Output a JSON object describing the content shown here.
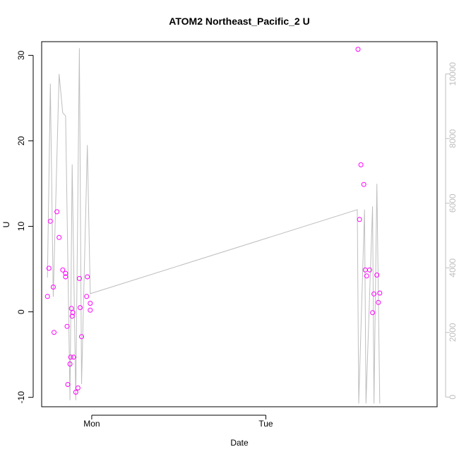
{
  "chart_data": {
    "type": "scatter",
    "title": "ATOM2 Northeast_Pacific_2 U",
    "xlabel": "Date",
    "ylabel": "U",
    "x_tick_labels": [
      "Mon",
      "Tue"
    ],
    "x_ticks_hours": [
      0,
      24
    ],
    "xlim_hours": [
      -6.9,
      47.6
    ],
    "y_ticks": [
      -10,
      0,
      10,
      20,
      30
    ],
    "ylim": [
      -11.1,
      31.6
    ],
    "y2_ticks": [
      0,
      2000,
      4000,
      6000,
      8000,
      10000
    ],
    "y2lim": [
      -300,
      11000
    ],
    "point_color": "#ff00ff",
    "line_color": "#bebebe",
    "y2_tick_color": "#bebebe",
    "series": [
      {
        "kind": "points",
        "axis": "left",
        "x_hours": [
          -6.1,
          -5.9,
          -5.7,
          -5.3,
          -5.2,
          -4.8,
          -4.5,
          -4.0,
          -3.6,
          -3.6,
          -3.4,
          -3.3,
          -3.0,
          -2.9,
          -2.8,
          -2.7,
          -2.6,
          -2.5,
          -2.2,
          -1.9,
          -1.7,
          -1.6,
          -1.4,
          -0.7,
          -0.6,
          -0.2,
          -0.2,
          36.7,
          36.9,
          37.1,
          37.5,
          37.7,
          37.9,
          38.3,
          38.7,
          38.9,
          39.3,
          39.5,
          39.7
        ],
        "values": [
          1.8,
          5.1,
          10.6,
          2.9,
          -2.4,
          11.7,
          8.7,
          4.9,
          4.5,
          4.1,
          -1.7,
          -8.5,
          -6.1,
          -5.3,
          0.4,
          -0.5,
          -0.1,
          -5.3,
          -9.4,
          -8.9,
          3.9,
          0.5,
          -2.9,
          1.8,
          4.1,
          1.0,
          0.2,
          30.7,
          10.8,
          17.2,
          14.9,
          4.9,
          4.2,
          4.9,
          -0.1,
          2.1,
          4.3,
          1.1,
          2.2
        ]
      },
      {
        "kind": "line",
        "axis": "right",
        "x_hours": [
          -6.1,
          -5.7,
          -5.3,
          -4.5,
          -4.0,
          -3.6,
          -3.0,
          -2.7,
          -2.2,
          -1.7,
          -1.4,
          -0.6,
          -0.2,
          36.6,
          36.8,
          37.6,
          37.8,
          38.7,
          38.9,
          39.3,
          39.7
        ],
        "values": [
          3700,
          9700,
          3100,
          10000,
          8800,
          8700,
          -100,
          7200,
          -100,
          10800,
          400,
          7800,
          3200,
          5800,
          -200,
          5800,
          -200,
          5900,
          -200,
          6600,
          -200
        ]
      }
    ]
  }
}
